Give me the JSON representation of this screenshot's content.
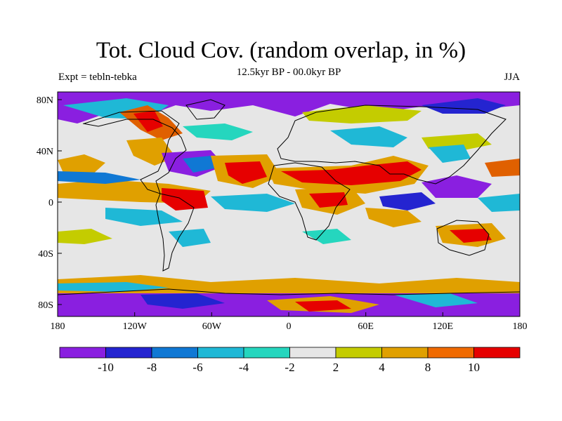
{
  "title": "Tot. Cloud Cov. (random overlap, in %)",
  "subtitle": "12.5kyr BP - 00.0kyr BP",
  "left_label": "Expt = tebln-tebka",
  "right_label": "JJA",
  "lat_ticks": [
    "80N",
    "40N",
    "0",
    "40S",
    "80S"
  ],
  "lon_ticks": [
    "180",
    "120W",
    "60W",
    "0",
    "60E",
    "120E",
    "180"
  ],
  "colorbar": {
    "colors": [
      "#8a1fe0",
      "#2424d0",
      "#1078d4",
      "#1fb8d6",
      "#25d6be",
      "#e6e6e6",
      "#c4cc00",
      "#e0a000",
      "#f06a00",
      "#e60000"
    ],
    "labels": [
      "-10",
      "-8",
      "-6",
      "-4",
      "-2",
      "2",
      "4",
      "8",
      "10"
    ]
  }
}
